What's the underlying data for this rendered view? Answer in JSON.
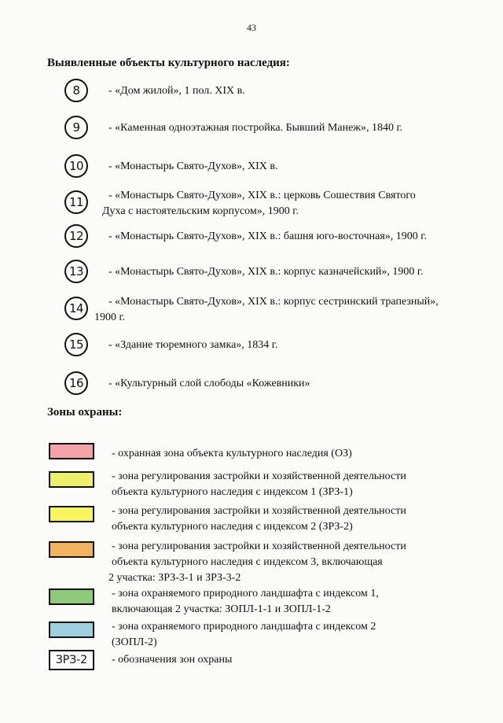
{
  "page_number": "43",
  "objects_heading": "Выявленные объекты культурного наследия:",
  "objects": [
    {
      "number": "8",
      "lines": [
        "- «Дом жилой», 1 пол. XIX в."
      ]
    },
    {
      "number": "9",
      "lines": [
        "- «Каменная одноэтажная постройка. Бывший Манеж», 1840 г."
      ]
    },
    {
      "number": "10",
      "lines": [
        "- «Монастырь Свято-Духов», XIX в."
      ]
    },
    {
      "number": "11",
      "lines": [
        "- «Монастырь Свято-Духов», XIX в.: церковь Сошествия Святого",
        "Духа с настоятельским корпусом», 1900 г."
      ]
    },
    {
      "number": "12",
      "lines": [
        "- «Монастырь Свято-Духов», XIX в.: башня юго-восточная», 1900 г."
      ]
    },
    {
      "number": "13",
      "lines": [
        "- «Монастырь Свято-Духов», XIX в.: корпус казначейский», 1900 г."
      ]
    },
    {
      "number": "14",
      "lines": [
        "- «Монастырь Свято-Духов», XIX в.: корпус сестринский трапезный»,",
        "1900 г."
      ]
    },
    {
      "number": "15",
      "lines": [
        "- «Здание тюремного замка», 1834 г."
      ]
    },
    {
      "number": "16",
      "lines": [
        "- «Культурный слой слободы «Кожевники»"
      ]
    }
  ],
  "zones_heading": "Зоны охраны:",
  "zones": [
    {
      "color": "#f4a3a9",
      "lines": [
        "- охранная зона объекта культурного наследия (ОЗ)"
      ]
    },
    {
      "color": "#ecf06a",
      "lines": [
        "- зона регулирования застройки и хозяйственной деятельности",
        "объекта культурного наследия с индексом 1 (ЗРЗ-1)"
      ]
    },
    {
      "color": "#f8f55e",
      "lines": [
        "- зона регулирования застройки и хозяйственной деятельности",
        "объекта культурного наследия с индексом 2 (ЗРЗ-2)"
      ]
    },
    {
      "color": "#f2b45f",
      "lines": [
        "- зона регулирования застройки и хозяйственной деятельности",
        "объекта культурного наследия с индексом 3, включающая",
        "2 участка: ЗРЗ-3-1 и ЗРЗ-3-2"
      ]
    },
    {
      "color": "#8fca7b",
      "lines": [
        "- зона охраняемого природного ландшафта с индексом 1,",
        "включающая 2 участка: ЗОПЛ-1-1 и ЗОПЛ-1-2"
      ]
    },
    {
      "color": "#9fd0df",
      "lines": [
        "- зона охраняемого природного ландшафта с индексом 2",
        "(ЗОПЛ-2)"
      ]
    }
  ],
  "label_legend": {
    "badge_text": "ЗРЗ-2",
    "lines": [
      "- обозначения зон охраны"
    ]
  }
}
